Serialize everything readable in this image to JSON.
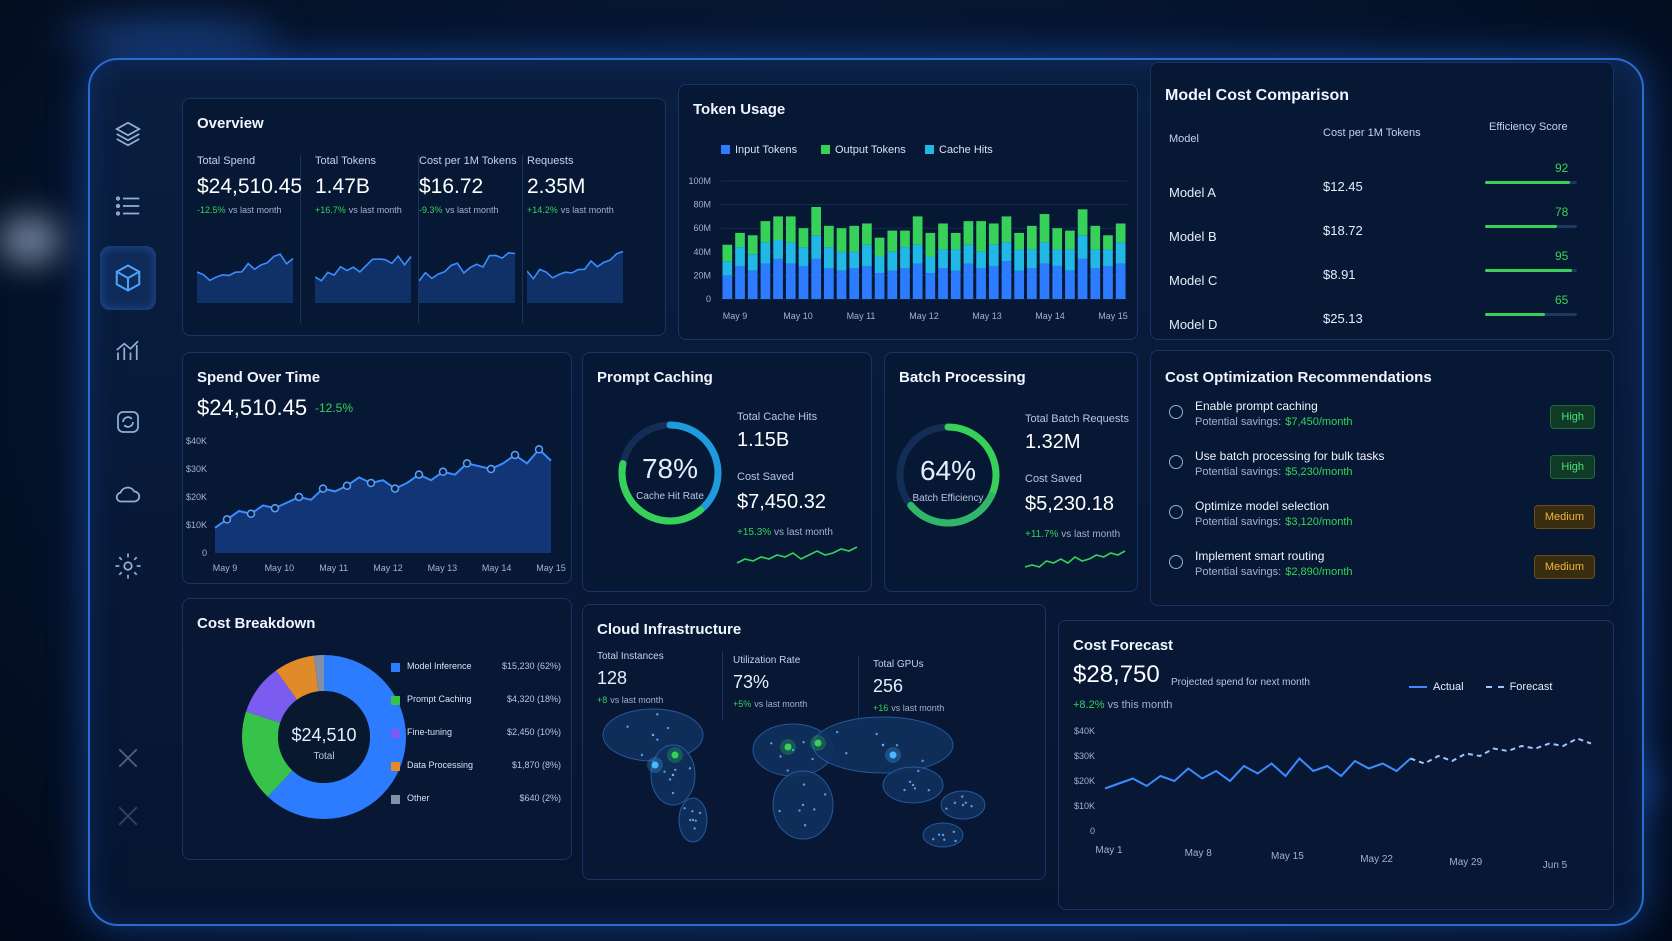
{
  "colors": {
    "accent": "#2d7cff",
    "green": "#37d15a",
    "cyan": "#22b8e6",
    "purple": "#7a5cf0",
    "orange": "#e08a2a",
    "gray": "#8090a8"
  },
  "sidebar": {
    "items": [
      "layers-icon",
      "list-icon",
      "cube-icon",
      "analytics-icon",
      "refresh-icon",
      "cloud-icon",
      "gear-icon",
      "close-icon",
      "close-icon"
    ]
  },
  "overview": {
    "title": "Overview",
    "cards": [
      {
        "label": "Total Spend",
        "value": "$24,510.45",
        "change": "-12.5%",
        "suffix": "vs last month"
      },
      {
        "label": "Total Tokens",
        "value": "1.47B",
        "change": "+16.7%",
        "suffix": "vs last month"
      },
      {
        "label": "Cost per 1M Tokens",
        "value": "$16.72",
        "change": "-9.3%",
        "suffix": "vs last month"
      },
      {
        "label": "Requests",
        "value": "2.35M",
        "change": "+14.2%",
        "suffix": "vs last month"
      }
    ]
  },
  "token_usage": {
    "title": "Token Usage",
    "legend": [
      "Input Tokens",
      "Output Tokens",
      "Cache Hits"
    ],
    "yticks": [
      "100M",
      "80M",
      "60M",
      "40M",
      "20M",
      "0"
    ],
    "xticks": [
      "May 9",
      "May 10",
      "May 11",
      "May 12",
      "May 13",
      "May 14",
      "May 15"
    ]
  },
  "model_cost": {
    "title": "Model Cost Comparison",
    "headers": [
      "Model",
      "Cost per 1M Tokens",
      "Efficiency Score"
    ],
    "rows": [
      {
        "model": "Model A",
        "cost": "$12.45",
        "score": 92
      },
      {
        "model": "Model B",
        "cost": "$18.72",
        "score": 78
      },
      {
        "model": "Model C",
        "cost": "$8.91",
        "score": 95
      },
      {
        "model": "Model D",
        "cost": "$25.13",
        "score": 65
      }
    ]
  },
  "spend_over_time": {
    "title": "Spend Over Time",
    "value": "$24,510.45",
    "change": "-12.5%",
    "yticks": [
      "$40K",
      "$30K",
      "$20K",
      "$10K",
      "0"
    ],
    "xticks": [
      "May 9",
      "May 10",
      "May 11",
      "May 12",
      "May 13",
      "May 14",
      "May 15"
    ]
  },
  "prompt_caching": {
    "title": "Prompt Caching",
    "percent": "78%",
    "percent_value": 78,
    "ring_label": "Cache Hit Rate",
    "stat1_label": "Total Cache Hits",
    "stat1_value": "1.15B",
    "stat2_label": "Cost Saved",
    "stat2_value": "$7,450.32",
    "change": "+15.3%",
    "suffix": "vs last month"
  },
  "batch_processing": {
    "title": "Batch Processing",
    "percent": "64%",
    "percent_value": 64,
    "ring_label": "Batch Efficiency",
    "stat1_label": "Total Batch Requests",
    "stat1_value": "1.32M",
    "stat2_label": "Cost Saved",
    "stat2_value": "$5,230.18",
    "change": "+11.7%",
    "suffix": "vs last month"
  },
  "recommendations": {
    "title": "Cost Optimization Recommendations",
    "savings_label": "Potential savings:",
    "items": [
      {
        "title": "Enable prompt caching",
        "savings": "$7,450/month",
        "priority": "High"
      },
      {
        "title": "Use batch processing for bulk tasks",
        "savings": "$5,230/month",
        "priority": "High"
      },
      {
        "title": "Optimize model selection",
        "savings": "$3,120/month",
        "priority": "Medium"
      },
      {
        "title": "Implement smart routing",
        "savings": "$2,890/month",
        "priority": "Medium"
      }
    ]
  },
  "cost_breakdown": {
    "title": "Cost Breakdown",
    "total": "$24,510",
    "total_label": "Total",
    "items": [
      {
        "name": "Model Inference",
        "value": "$15,230 (62%)",
        "pct": 62,
        "color": "#2d7cff"
      },
      {
        "name": "Prompt Caching",
        "value": "$4,320 (18%)",
        "pct": 18,
        "color": "#37c24a"
      },
      {
        "name": "Fine-tuning",
        "value": "$2,450 (10%)",
        "pct": 10,
        "color": "#7a5cf0"
      },
      {
        "name": "Data Processing",
        "value": "$1,870 (8%)",
        "pct": 8,
        "color": "#e08a2a"
      },
      {
        "name": "Other",
        "value": "$640 (2%)",
        "pct": 2,
        "color": "#8090a8"
      }
    ]
  },
  "cloud": {
    "title": "Cloud Infrastructure",
    "stats": [
      {
        "label": "Total Instances",
        "value": "128",
        "change": "+8",
        "suffix": "vs last month"
      },
      {
        "label": "Utilization Rate",
        "value": "73%",
        "change": "+5%",
        "suffix": "vs last month"
      },
      {
        "label": "Total GPUs",
        "value": "256",
        "change": "+16",
        "suffix": "vs last month"
      }
    ]
  },
  "forecast": {
    "title": "Cost Forecast",
    "value": "$28,750",
    "subtitle": "Projected spend for next month",
    "change": "+8.2%",
    "suffix": "vs this month",
    "legend_actual": "Actual",
    "legend_forecast": "Forecast",
    "yticks": [
      "$40K",
      "$30K",
      "$20K",
      "$10K",
      "0"
    ],
    "xticks": [
      "May 1",
      "May 8",
      "May 15",
      "May 22",
      "May 29",
      "Jun 5"
    ]
  },
  "chart_data": [
    {
      "type": "bar",
      "chart": "token_usage",
      "stacked": true,
      "ylim": [
        0,
        100
      ],
      "series": [
        {
          "name": "Input Tokens",
          "values": [
            20,
            28,
            24,
            30,
            34,
            30,
            28,
            34,
            26,
            24,
            26,
            28,
            22,
            24,
            26,
            30,
            22,
            26,
            24,
            30,
            26,
            28,
            32,
            24,
            26,
            30,
            28,
            24,
            34,
            26,
            28,
            30
          ]
        },
        {
          "name": "Cache Hits",
          "values": [
            12,
            16,
            14,
            18,
            16,
            18,
            16,
            20,
            18,
            16,
            14,
            18,
            14,
            16,
            18,
            16,
            14,
            16,
            18,
            16,
            14,
            18,
            16,
            18,
            16,
            18,
            14,
            18,
            20,
            16,
            14,
            18
          ]
        },
        {
          "name": "Output Tokens",
          "values": [
            14,
            12,
            16,
            18,
            20,
            22,
            16,
            24,
            18,
            20,
            22,
            18,
            16,
            18,
            14,
            24,
            20,
            22,
            14,
            20,
            26,
            18,
            22,
            14,
            20,
            24,
            18,
            16,
            22,
            20,
            12,
            16
          ]
        }
      ]
    },
    {
      "type": "area",
      "chart": "spend_over_time",
      "ylim": [
        0,
        40000
      ],
      "values": [
        9000,
        12000,
        15000,
        14000,
        17000,
        16000,
        18000,
        20000,
        19000,
        23000,
        22000,
        24000,
        27000,
        25000,
        26000,
        23000,
        25000,
        28000,
        26000,
        29000,
        28000,
        32000,
        31000,
        30000,
        32000,
        35000,
        32000,
        37000,
        33000
      ]
    },
    {
      "type": "pie",
      "chart": "cost_breakdown",
      "categories": [
        "Model Inference",
        "Prompt Caching",
        "Fine-tuning",
        "Data Processing",
        "Other"
      ],
      "values": [
        15230,
        4320,
        2450,
        1870,
        640
      ]
    },
    {
      "type": "line",
      "chart": "forecast",
      "ylim": [
        0,
        40000
      ],
      "series": [
        {
          "name": "Actual",
          "values": [
            17000,
            19000,
            21000,
            18000,
            22000,
            20000,
            25000,
            21000,
            24000,
            20000,
            26000,
            23000,
            27000,
            22000,
            29000,
            24000,
            26000,
            22000,
            28000,
            25000,
            27000,
            24000,
            29000
          ]
        },
        {
          "name": "Forecast",
          "values": [
            29000,
            27000,
            30000,
            28000,
            31000,
            30000,
            33000,
            32000,
            34000,
            33000,
            35000,
            34000,
            37000,
            35000
          ]
        }
      ]
    },
    {
      "type": "line",
      "chart": "prompt_caching_spark",
      "values": [
        3,
        5,
        4,
        6,
        5,
        7,
        6,
        8,
        5,
        7,
        9,
        7,
        8,
        10,
        9,
        11
      ]
    },
    {
      "type": "line",
      "chart": "batch_spark",
      "values": [
        3,
        4,
        3,
        6,
        5,
        7,
        5,
        8,
        6,
        7,
        9,
        8,
        10,
        9,
        11
      ]
    }
  ]
}
